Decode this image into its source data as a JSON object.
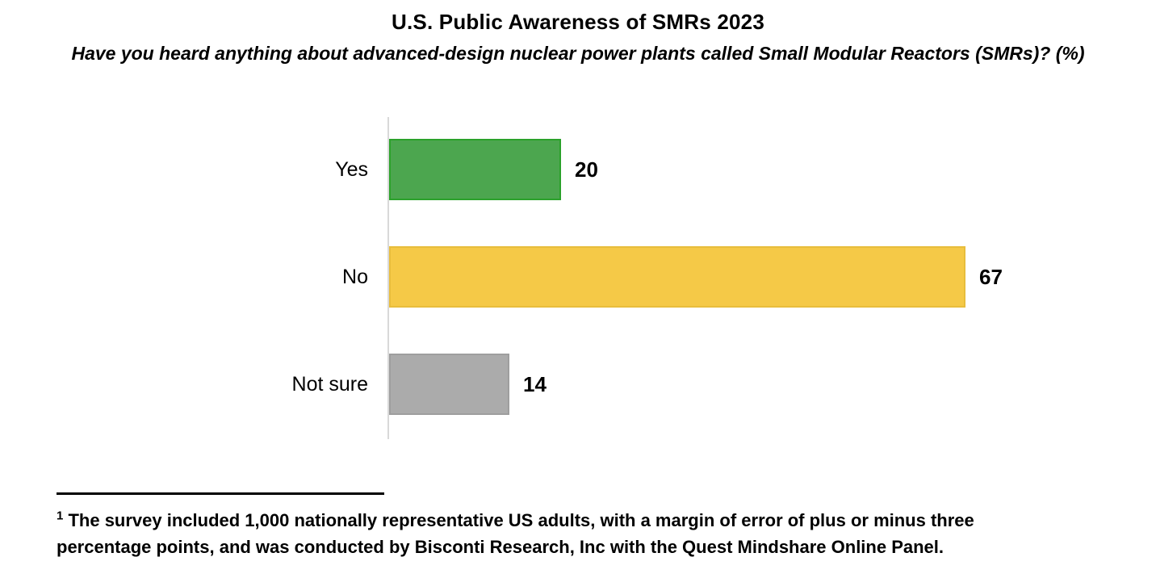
{
  "header": {
    "title": "U.S. Public Awareness of SMRs 2023",
    "subtitle": "Have you heard anything about advanced-design nuclear power plants called Small Modular Reactors (SMRs)? (%)"
  },
  "chart_data": {
    "type": "bar",
    "orientation": "horizontal",
    "title": "U.S. Public Awareness of SMRs 2023",
    "xlabel": "",
    "ylabel": "",
    "categories": [
      "Yes",
      "No",
      "Not sure"
    ],
    "values": [
      20,
      67,
      14
    ],
    "xlim": [
      0,
      67
    ],
    "grid": false,
    "data_labels": true,
    "legend": "none",
    "bar_colors": [
      {
        "fill": "#4CA64F",
        "border": "#2BA12B"
      },
      {
        "fill": "#F5C947",
        "border": "#E8BD3C"
      },
      {
        "fill": "#ABABAB",
        "border": "#9E9E9E"
      }
    ],
    "axis_line_color": "#D9D9D9",
    "value_text_color": "#000000"
  },
  "footnote": {
    "sup": "1",
    "line1": "The survey included 1,000 nationally representative US adults, with a margin of error of plus or minus three",
    "line2": "percentage points, and was conducted by Bisconti Research, Inc with the Quest Mindshare Online Panel."
  }
}
